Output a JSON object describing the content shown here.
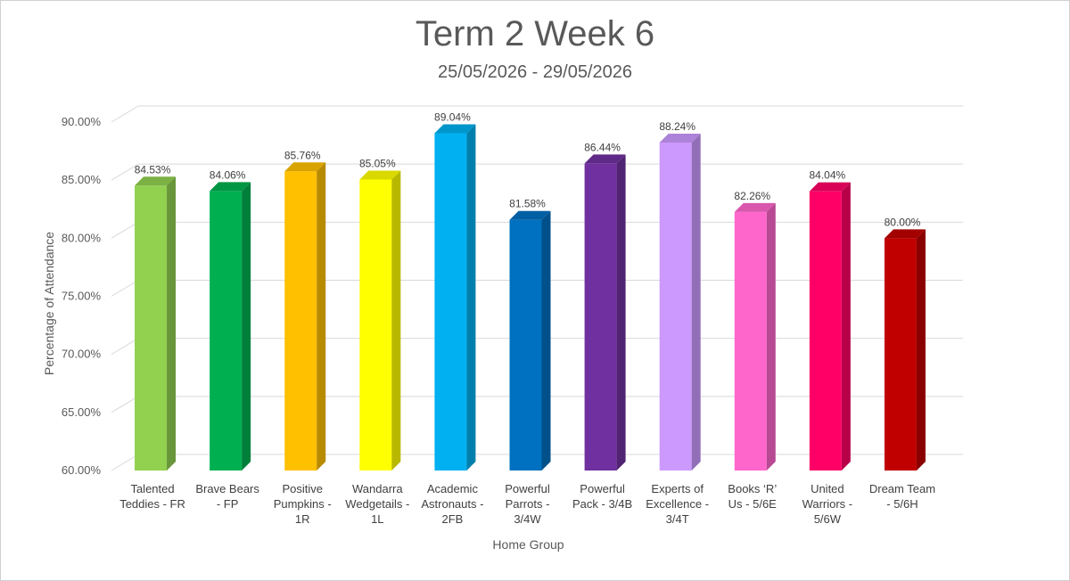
{
  "chart_data": {
    "type": "bar",
    "title": "Term 2 Week 6",
    "subtitle": "25/05/2026 - 29/05/2026",
    "xlabel": "Home Group",
    "ylabel": "Percentage of Attendance",
    "ylim": [
      60,
      90
    ],
    "yticks": [
      "60.00%",
      "65.00%",
      "70.00%",
      "75.00%",
      "80.00%",
      "85.00%",
      "90.00%"
    ],
    "categories": [
      [
        "Talented",
        "Teddies - FR"
      ],
      [
        "Brave Bears",
        "- FP"
      ],
      [
        "Positive",
        "Pumpkins -",
        "1R"
      ],
      [
        "Wandarra",
        "Wedgetails -",
        "1L"
      ],
      [
        "Academic",
        "Astronauts -",
        "2FB"
      ],
      [
        "Powerful",
        "Parrots -",
        "3/4W"
      ],
      [
        "Powerful",
        "Pack - 3/4B"
      ],
      [
        "Experts of",
        "Excellence -",
        "3/4T"
      ],
      [
        "Books ‘R’",
        "Us - 5/6E"
      ],
      [
        "United",
        "Warriors -",
        "5/6W"
      ],
      [
        "Dream Team",
        "- 5/6H"
      ]
    ],
    "values": [
      84.53,
      84.06,
      85.76,
      85.05,
      89.04,
      81.58,
      86.44,
      88.24,
      82.26,
      84.04,
      80.0
    ],
    "value_labels": [
      "84.53%",
      "84.06%",
      "85.76%",
      "85.05%",
      "89.04%",
      "81.58%",
      "86.44%",
      "88.24%",
      "82.26%",
      "84.04%",
      "80.00%"
    ],
    "colors": [
      "#92D050",
      "#00B050",
      "#FFC000",
      "#FFFF00",
      "#00B0F0",
      "#0070C0",
      "#7030A0",
      "#CC99FF",
      "#FF66CC",
      "#FF0066",
      "#C00000"
    ],
    "grid": true,
    "legend": "none",
    "style": "3d-column"
  }
}
